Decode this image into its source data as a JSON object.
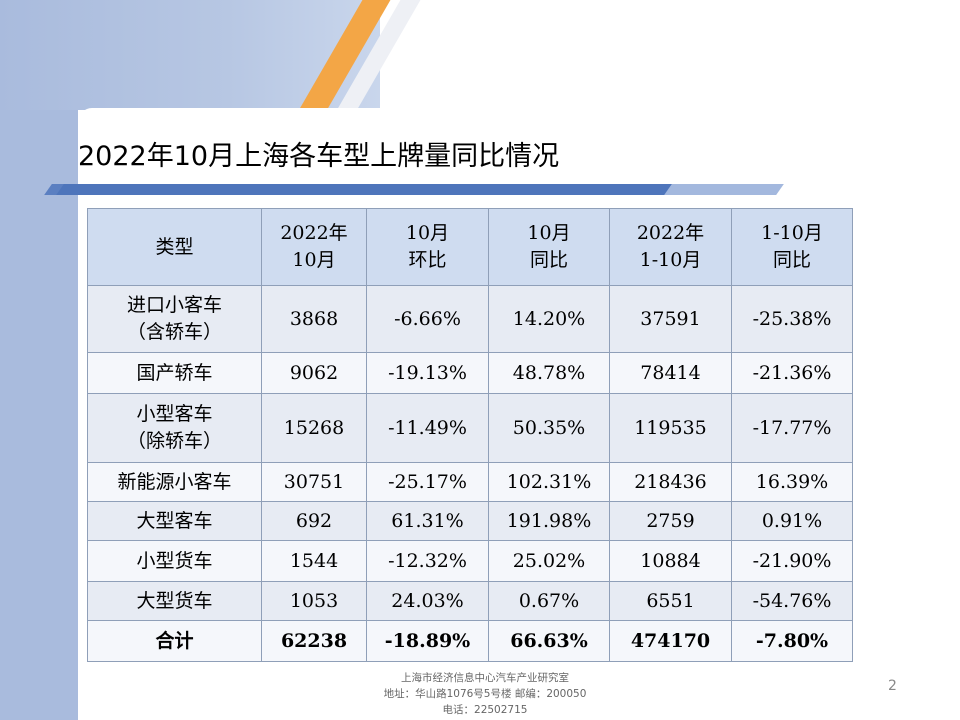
{
  "title": "2022年10月上海各车型上牌量同比情况",
  "table": {
    "headers": [
      {
        "l1": "类型",
        "l2": ""
      },
      {
        "l1": "2022年",
        "l2": "10月"
      },
      {
        "l1": "10月",
        "l2": "环比"
      },
      {
        "l1": "10月",
        "l2": "同比"
      },
      {
        "l1": "2022年",
        "l2": "1-10月"
      },
      {
        "l1": "1-10月",
        "l2": "同比"
      }
    ],
    "rows": [
      {
        "type_l1": "进口小客车",
        "type_l2": "（含轿车）",
        "oct": "3868",
        "mom": "-6.66%",
        "yoy": "14.20%",
        "ytd": "37591",
        "ytd_yoy": "-25.38%"
      },
      {
        "type_l1": "国产轿车",
        "type_l2": "",
        "oct": "9062",
        "mom": "-19.13%",
        "yoy": "48.78%",
        "ytd": "78414",
        "ytd_yoy": "-21.36%"
      },
      {
        "type_l1": "小型客车",
        "type_l2": "（除轿车）",
        "oct": "15268",
        "mom": "-11.49%",
        "yoy": "50.35%",
        "ytd": "119535",
        "ytd_yoy": "-17.77%"
      },
      {
        "type_l1": "新能源小客车",
        "type_l2": "",
        "oct": "30751",
        "mom": "-25.17%",
        "yoy": "102.31%",
        "ytd": "218436",
        "ytd_yoy": "16.39%"
      },
      {
        "type_l1": "大型客车",
        "type_l2": "",
        "oct": "692",
        "mom": "61.31%",
        "yoy": "191.98%",
        "ytd": "2759",
        "ytd_yoy": "0.91%"
      },
      {
        "type_l1": "小型货车",
        "type_l2": "",
        "oct": "1544",
        "mom": "-12.32%",
        "yoy": "25.02%",
        "ytd": "10884",
        "ytd_yoy": "-21.90%"
      },
      {
        "type_l1": "大型货车",
        "type_l2": "",
        "oct": "1053",
        "mom": "24.03%",
        "yoy": "0.67%",
        "ytd": "6551",
        "ytd_yoy": "-54.76%"
      }
    ],
    "total": {
      "type_l1": "合计",
      "oct": "62238",
      "mom": "-18.89%",
      "yoy": "66.63%",
      "ytd": "474170",
      "ytd_yoy": "-7.80%"
    }
  },
  "footer": {
    "line1": "上海市经济信息中心汽车产业研究室",
    "line2": "地址：华山路1076号5号楼   邮编：200050",
    "line3": "电话：22502715"
  },
  "page_number": "2",
  "colors": {
    "header_fill": "#cfdcf0",
    "row_fill_odd": "#e7ebf3",
    "row_fill_even": "#f5f7fb",
    "accent_orange": "#f3a646",
    "accent_blue": "#4e75bb"
  }
}
